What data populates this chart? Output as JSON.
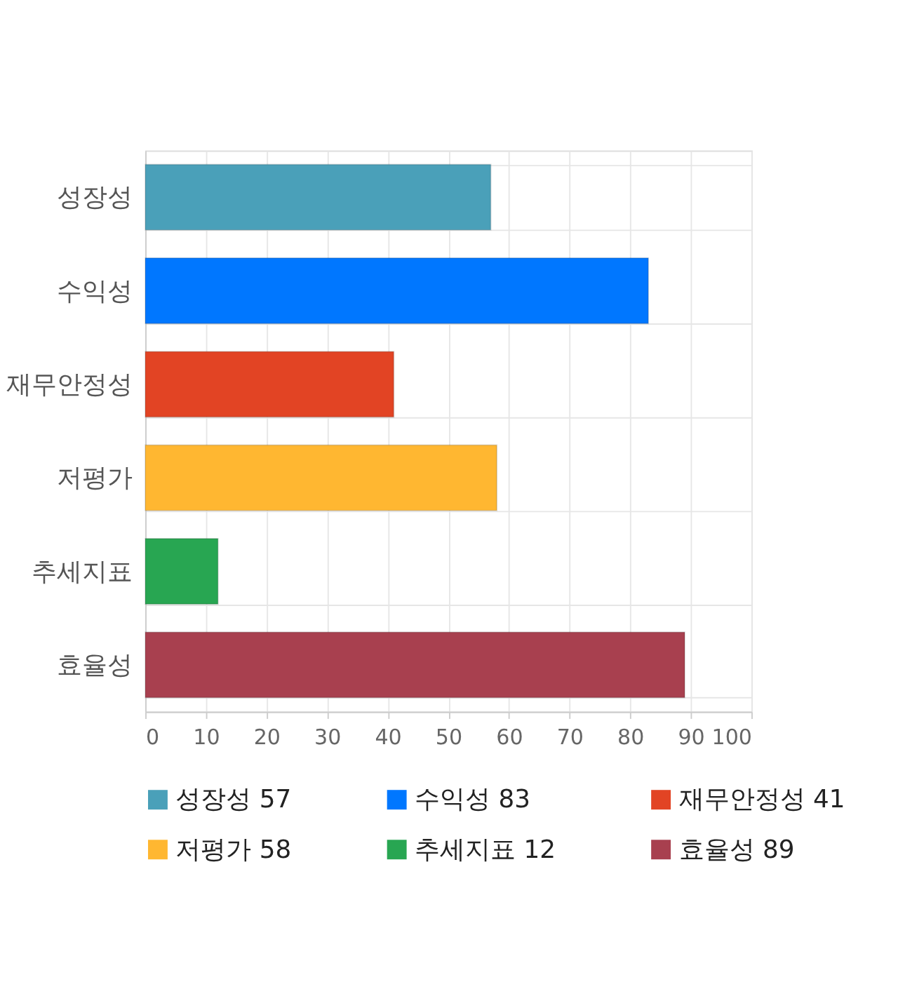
{
  "chart_data": {
    "type": "bar",
    "orientation": "horizontal",
    "stacked": true,
    "categories": [
      "성장성",
      "수익성",
      "재무안정성",
      "저평가",
      "추세지표",
      "효율성"
    ],
    "series": [
      {
        "name": "성장성 57",
        "color": "#4aa0b9",
        "values": [
          57,
          null,
          null,
          null,
          null,
          null
        ]
      },
      {
        "name": "수익성 83",
        "color": "#0077ff",
        "values": [
          null,
          83,
          null,
          null,
          null,
          null
        ]
      },
      {
        "name": "재무안정성 41",
        "color": "#e24424",
        "values": [
          null,
          null,
          41,
          null,
          null,
          null
        ]
      },
      {
        "name": "저평가 58",
        "color": "#ffb731",
        "values": [
          null,
          null,
          null,
          58,
          null,
          null
        ]
      },
      {
        "name": "추세지표 12",
        "color": "#28a652",
        "values": [
          null,
          null,
          null,
          null,
          12,
          null
        ]
      },
      {
        "name": "효율성 89",
        "color": "#a8404f",
        "values": [
          null,
          null,
          null,
          null,
          null,
          89
        ]
      }
    ],
    "xlim": [
      0,
      100
    ],
    "xticks": [
      0,
      10,
      20,
      30,
      40,
      50,
      60,
      70,
      80,
      90,
      100
    ],
    "grid": true,
    "legend": "bottom"
  }
}
